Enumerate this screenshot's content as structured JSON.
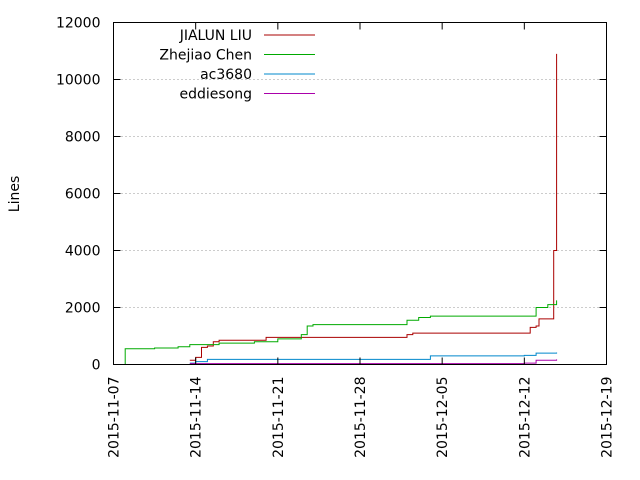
{
  "chart_data": {
    "type": "line",
    "title": "",
    "xlabel": "",
    "ylabel": "Lines",
    "x_range": [
      "2015-11-07",
      "2015-12-19"
    ],
    "ylim": [
      0,
      12000
    ],
    "x_ticks": [
      "2015-11-07",
      "2015-11-14",
      "2015-11-21",
      "2015-11-28",
      "2015-12-05",
      "2015-12-12",
      "2015-12-19"
    ],
    "y_ticks": [
      "0",
      "2000",
      "4000",
      "6000",
      "8000",
      "10000",
      "12000"
    ],
    "grid": "dotted",
    "legend": "top-left",
    "series": [
      {
        "name": "JIALUN LIU",
        "color": "#aa0000",
        "points": [
          [
            "2015-11-13T12:00",
            150
          ],
          [
            "2015-11-14T00:00",
            250
          ],
          [
            "2015-11-14T12:00",
            600
          ],
          [
            "2015-11-15T00:00",
            650
          ],
          [
            "2015-11-15T12:00",
            800
          ],
          [
            "2015-11-16T00:00",
            850
          ],
          [
            "2015-11-20T00:00",
            950
          ],
          [
            "2015-12-01T00:00",
            950
          ],
          [
            "2015-12-02T00:00",
            1050
          ],
          [
            "2015-12-02T12:00",
            1100
          ],
          [
            "2015-12-12T00:00",
            1100
          ],
          [
            "2015-12-12T12:00",
            1300
          ],
          [
            "2015-12-13T00:00",
            1350
          ],
          [
            "2015-12-13T06:00",
            1600
          ],
          [
            "2015-12-14T09:00",
            1600
          ],
          [
            "2015-12-14T12:00",
            4000
          ],
          [
            "2015-12-14T18:00",
            10900
          ]
        ]
      },
      {
        "name": "Zhejiao Chen",
        "color": "#00aa00",
        "points": [
          [
            "2015-11-08T00:00",
            0
          ],
          [
            "2015-11-08T00:00",
            550
          ],
          [
            "2015-11-10T12:00",
            580
          ],
          [
            "2015-11-12T12:00",
            620
          ],
          [
            "2015-11-13T12:00",
            700
          ],
          [
            "2015-11-16T00:00",
            750
          ],
          [
            "2015-11-19T00:00",
            800
          ],
          [
            "2015-11-21T00:00",
            900
          ],
          [
            "2015-11-23T00:00",
            1050
          ],
          [
            "2015-11-23T12:00",
            1350
          ],
          [
            "2015-11-24T00:00",
            1400
          ],
          [
            "2015-12-01T00:00",
            1400
          ],
          [
            "2015-12-02T00:00",
            1550
          ],
          [
            "2015-12-03T00:00",
            1650
          ],
          [
            "2015-12-04T00:00",
            1700
          ],
          [
            "2015-12-12T12:00",
            1700
          ],
          [
            "2015-12-13T00:00",
            2000
          ],
          [
            "2015-12-14T00:00",
            2100
          ],
          [
            "2015-12-14T18:00",
            2250
          ]
        ]
      },
      {
        "name": "ac3680",
        "color": "#0088cc",
        "points": [
          [
            "2015-11-13T12:00",
            50
          ],
          [
            "2015-11-14T00:00",
            100
          ],
          [
            "2015-11-15T00:00",
            180
          ],
          [
            "2015-12-04T00:00",
            200
          ],
          [
            "2015-12-04T00:00",
            300
          ],
          [
            "2015-12-12T00:00",
            320
          ],
          [
            "2015-12-13T00:00",
            400
          ],
          [
            "2015-12-14T18:00",
            420
          ]
        ]
      },
      {
        "name": "eddiesong",
        "color": "#aa00aa",
        "points": [
          [
            "2015-11-13T12:00",
            30
          ],
          [
            "2015-12-12T00:00",
            50
          ],
          [
            "2015-12-13T00:00",
            150
          ],
          [
            "2015-12-14T18:00",
            180
          ]
        ]
      }
    ]
  }
}
